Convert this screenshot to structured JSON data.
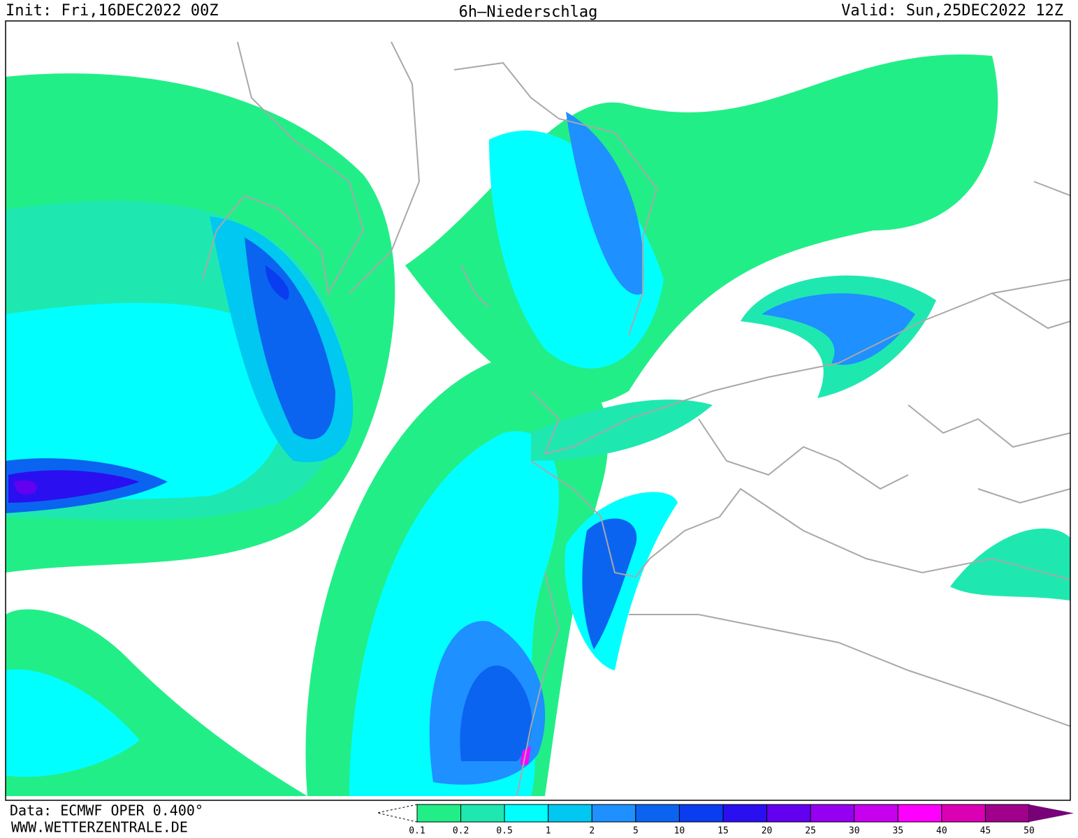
{
  "header": {
    "init": "Init: Fri,16DEC2022 00Z",
    "title": "6h–Niederschlag",
    "valid": "Valid: Sun,25DEC2022 12Z"
  },
  "footer": {
    "source": "Data: ECMWF OPER 0.400°",
    "website": "WWW.WETTERZENTRALE.DE"
  },
  "legend": {
    "levels": [
      0.1,
      0.2,
      0.5,
      1,
      2,
      5,
      10,
      15,
      20,
      25,
      30,
      35,
      40,
      45,
      50
    ],
    "colors": [
      "#22ee88",
      "#1ee8b0",
      "#00ffff",
      "#00c8f0",
      "#1e90ff",
      "#0a64f0",
      "#0a3cf0",
      "#2a10f0",
      "#6400f0",
      "#9600f0",
      "#c800f0",
      "#ff00ff",
      "#dc00b4",
      "#a0008c",
      "#780078"
    ]
  }
}
